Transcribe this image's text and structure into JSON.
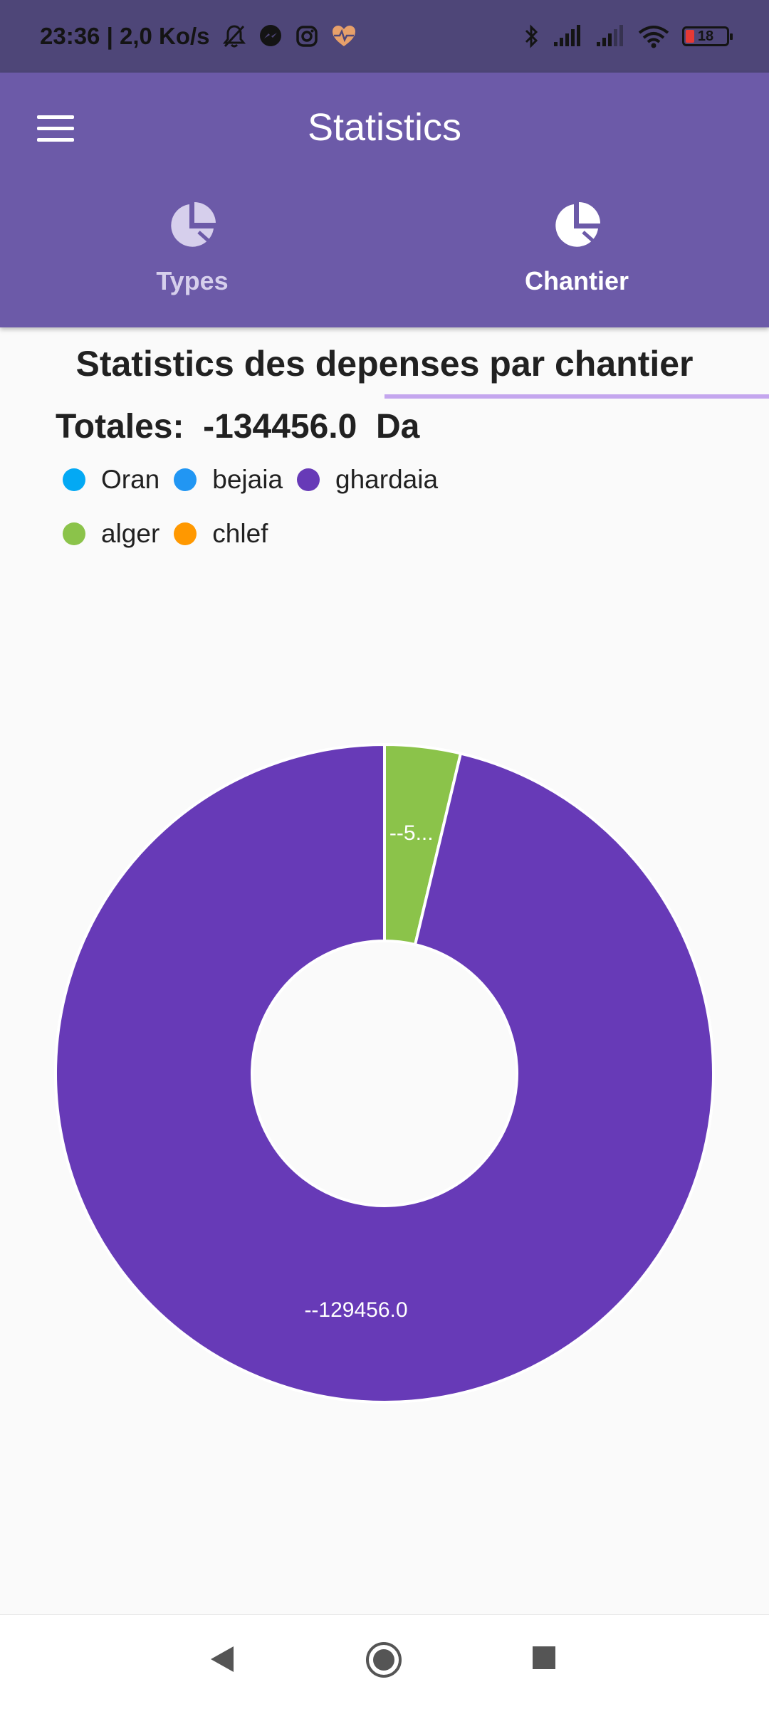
{
  "status_bar": {
    "time_speed": "23:36 | 2,0 Ko/s",
    "battery_level": "18",
    "icons": [
      "bell-off-icon",
      "messenger-icon",
      "instagram-icon",
      "health-icon",
      "bluetooth-icon",
      "signal-icon",
      "signal-icon",
      "wifi-icon",
      "battery-icon"
    ]
  },
  "app_bar": {
    "title": "Statistics",
    "menu_icon": "menu-icon"
  },
  "tabs": [
    {
      "label": "Types",
      "icon": "pie-chart-icon",
      "selected": false
    },
    {
      "label": "Chantier",
      "icon": "pie-chart-icon",
      "selected": true
    }
  ],
  "content": {
    "chart_title": "Statistics des depenses par chantier",
    "totals_text": "Totales:  -134456.0  Da"
  },
  "chart_data": {
    "type": "pie",
    "donut": true,
    "title": "Statistics des depenses par chantier",
    "legend_position": "top-left",
    "series": [
      {
        "name": "Oran",
        "value": 0,
        "color": "#03a9f4"
      },
      {
        "name": "bejaia",
        "value": 0,
        "color": "#2196f3"
      },
      {
        "name": "ghardaia",
        "value": -129456.0,
        "color": "#673ab7",
        "label": "--129456.0"
      },
      {
        "name": "alger",
        "value": -5000.0,
        "color": "#8bc34a",
        "label": "--5..."
      },
      {
        "name": "chlef",
        "value": 0,
        "color": "#ff9800"
      }
    ]
  },
  "nav_bar": {
    "back": "back-icon",
    "home": "home-icon",
    "recents": "recents-icon"
  }
}
